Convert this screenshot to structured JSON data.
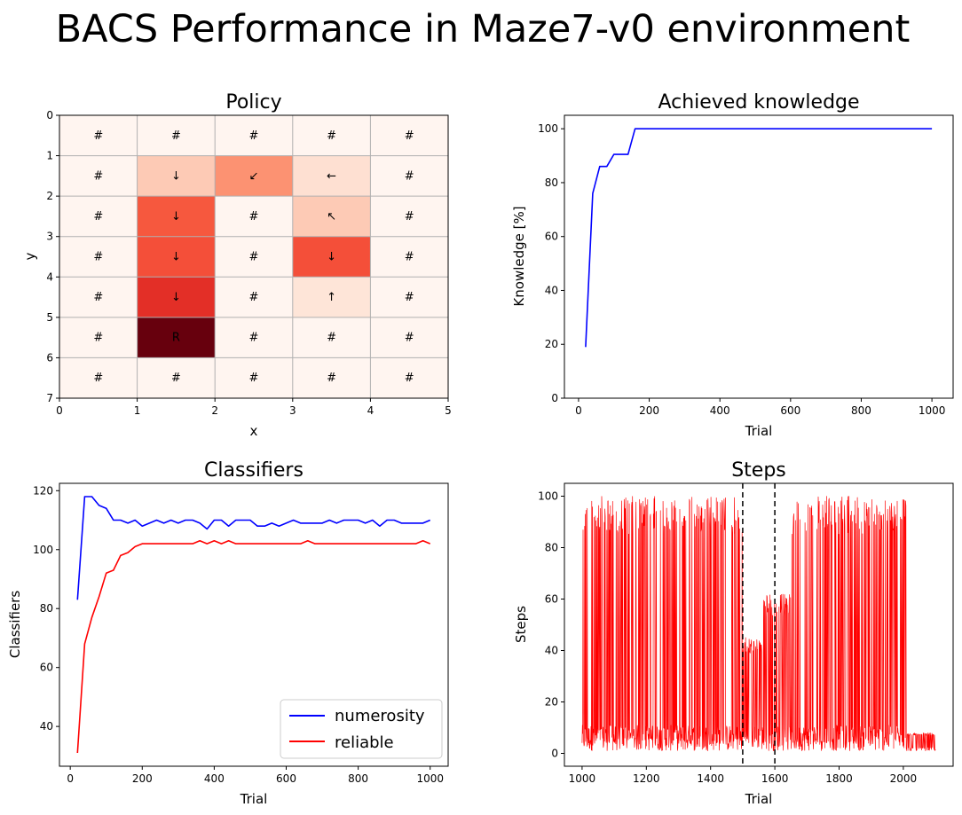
{
  "suptitle": "BACS Performance in Maze7-v0 environment",
  "chart_data": [
    {
      "type": "heatmap",
      "title": "Policy",
      "xlabel": "x",
      "ylabel": "y",
      "xlim": [
        0,
        5
      ],
      "ylim": [
        7,
        0
      ],
      "xticks": [
        "0",
        "1",
        "2",
        "3",
        "4",
        "5"
      ],
      "yticks": [
        "0",
        "1",
        "2",
        "3",
        "4",
        "5",
        "6",
        "7"
      ],
      "colormap": "Reds",
      "cells": [
        [
          "#",
          "#",
          "#",
          "#",
          "#"
        ],
        [
          "#",
          "↓",
          "↙",
          "←",
          "#"
        ],
        [
          "#",
          "↓",
          "#",
          "↖",
          "#"
        ],
        [
          "#",
          "↓",
          "#",
          "↓",
          "#"
        ],
        [
          "#",
          "↓",
          "#",
          "↑",
          "#"
        ],
        [
          "#",
          "R",
          "#",
          "#",
          "#"
        ],
        [
          "#",
          "#",
          "#",
          "#",
          "#"
        ]
      ],
      "colors": [
        [
          "#fff5f0",
          "#fff5f0",
          "#fff5f0",
          "#fff5f0",
          "#fff5f0"
        ],
        [
          "#fff5f0",
          "#fdcab5",
          "#fc9272",
          "#fee0d2",
          "#fff5f0"
        ],
        [
          "#fff5f0",
          "#f6583e",
          "#fff5f0",
          "#fdcab5",
          "#fff5f0"
        ],
        [
          "#fff5f0",
          "#f44f39",
          "#fff5f0",
          "#f44f39",
          "#fff5f0"
        ],
        [
          "#fff5f0",
          "#e32f27",
          "#fff5f0",
          "#fee5d8",
          "#fff5f0"
        ],
        [
          "#fff5f0",
          "#67000d",
          "#fff5f0",
          "#fff5f0",
          "#fff5f0"
        ],
        [
          "#fff5f0",
          "#fff5f0",
          "#fff5f0",
          "#fff5f0",
          "#fff5f0"
        ]
      ]
    },
    {
      "type": "line",
      "title": "Achieved knowledge",
      "xlabel": "Trial",
      "ylabel": "Knowledge [%]",
      "xlim": [
        -40,
        1060
      ],
      "ylim": [
        0,
        105
      ],
      "xticks": [
        0,
        200,
        400,
        600,
        800,
        1000
      ],
      "yticks": [
        0,
        20,
        40,
        60,
        80,
        100
      ],
      "series": [
        {
          "color": "#0000ff",
          "x": [
            20,
            40,
            60,
            80,
            100,
            120,
            140,
            160,
            180,
            200,
            1000
          ],
          "y": [
            19,
            76,
            86,
            86,
            90.5,
            90.5,
            90.5,
            100,
            100,
            100,
            100
          ]
        }
      ]
    },
    {
      "type": "line",
      "title": "Classifiers",
      "xlabel": "Trial",
      "ylabel": "Classifiers",
      "xlim": [
        -30,
        1050
      ],
      "ylim": [
        26.5,
        122.5
      ],
      "xticks": [
        0,
        200,
        400,
        600,
        800,
        1000
      ],
      "yticks": [
        40,
        60,
        80,
        100,
        120
      ],
      "legend": "lower-right",
      "series": [
        {
          "name": "numerosity",
          "color": "#0000ff",
          "x": [
            20,
            40,
            60,
            80,
            100,
            120,
            140,
            160,
            180,
            200,
            220,
            240,
            260,
            280,
            300,
            320,
            340,
            360,
            380,
            400,
            420,
            440,
            460,
            480,
            500,
            520,
            540,
            560,
            580,
            600,
            620,
            640,
            660,
            680,
            700,
            720,
            740,
            760,
            780,
            800,
            820,
            840,
            860,
            880,
            900,
            920,
            940,
            960,
            980,
            1000
          ],
          "y": [
            83,
            118,
            118,
            115,
            114,
            110,
            110,
            109,
            110,
            108,
            109,
            110,
            109,
            110,
            109,
            110,
            110,
            109,
            107,
            110,
            110,
            108,
            110,
            110,
            110,
            108,
            108,
            109,
            108,
            109,
            110,
            109,
            109,
            109,
            109,
            110,
            109,
            110,
            110,
            110,
            109,
            110,
            108,
            110,
            110,
            109,
            109,
            109,
            109,
            110
          ]
        },
        {
          "name": "reliable",
          "color": "#ff0000",
          "x": [
            20,
            40,
            60,
            80,
            100,
            120,
            140,
            160,
            180,
            200,
            220,
            240,
            260,
            280,
            300,
            320,
            340,
            360,
            380,
            400,
            420,
            440,
            460,
            480,
            500,
            520,
            540,
            560,
            580,
            600,
            620,
            640,
            660,
            680,
            700,
            720,
            740,
            760,
            780,
            800,
            820,
            840,
            860,
            880,
            900,
            920,
            940,
            960,
            980,
            1000
          ],
          "y": [
            31,
            68,
            77,
            84,
            92,
            93,
            98,
            99,
            101,
            102,
            102,
            102,
            102,
            102,
            102,
            102,
            102,
            103,
            102,
            103,
            102,
            103,
            102,
            102,
            102,
            102,
            102,
            102,
            102,
            102,
            102,
            102,
            103,
            102,
            102,
            102,
            102,
            102,
            102,
            102,
            102,
            102,
            102,
            102,
            102,
            102,
            102,
            102,
            103,
            102
          ]
        }
      ]
    },
    {
      "type": "line",
      "title": "Steps",
      "xlabel": "Trial",
      "ylabel": "Steps",
      "xlim": [
        945,
        2155
      ],
      "ylim": [
        -5,
        105
      ],
      "xticks": [
        1000,
        1200,
        1400,
        1600,
        1800,
        2000
      ],
      "yticks": [
        0,
        20,
        40,
        60,
        80,
        100
      ],
      "vlines": [
        1500,
        1600
      ],
      "series": [
        {
          "color": "#ff0000",
          "x_start": 1000,
          "x_end": 2100,
          "phases": [
            {
              "from": 1000,
              "to": 1500,
              "low": 1,
              "high": 100,
              "p_high": 0.33
            },
            {
              "from": 1500,
              "to": 1560,
              "low": 2,
              "high": 45,
              "p_high": 0.5
            },
            {
              "from": 1560,
              "to": 1650,
              "low": 1,
              "high": 62,
              "p_high": 0.45
            },
            {
              "from": 1650,
              "to": 2010,
              "low": 1,
              "high": 100,
              "p_high": 0.35
            },
            {
              "from": 2010,
              "to": 2100,
              "low": 1,
              "high": 8,
              "p_high": 0.5
            }
          ]
        }
      ]
    }
  ]
}
